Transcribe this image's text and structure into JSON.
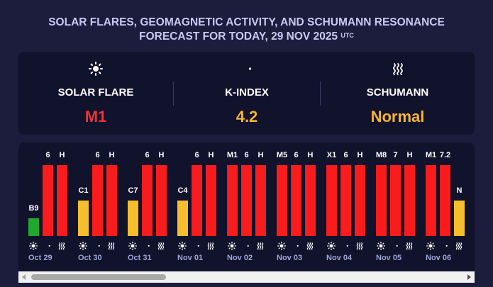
{
  "page": {
    "title_line1": "SOLAR FLARES, GEOMAGNETIC ACTIVITY, AND SCHUMANN RESONANCE",
    "title_line2": "FORECAST FOR TODAY, 29 NOV 2025",
    "title_sup": "UTC"
  },
  "summary": {
    "solar": {
      "icon": "sun-icon",
      "label": "SOLAR FLARE",
      "value": "M1",
      "color": "#f03434"
    },
    "kindex": {
      "icon": "moon-icon",
      "label": "K-INDEX",
      "value": "4.2",
      "color": "#f7b52f"
    },
    "schumann": {
      "icon": "waves-icon",
      "label": "SCHUMANN",
      "value": "Normal",
      "color": "#f7b52f"
    }
  },
  "colors": {
    "red": "#f81c1c",
    "yellow": "#f6be2c",
    "green": "#1ea82c",
    "date": "#9fa6d6"
  },
  "chart_data": {
    "type": "bar",
    "days": [
      {
        "date": "Oct 29",
        "flare": {
          "label": "B9",
          "level": 0.25,
          "color": "green"
        },
        "kindex": {
          "label": "6",
          "level": 1.0,
          "color": "red"
        },
        "schumann": {
          "label": "H",
          "level": 1.0,
          "color": "red"
        }
      },
      {
        "date": "Oct 30",
        "flare": {
          "label": "C1",
          "level": 0.5,
          "color": "yellow"
        },
        "kindex": {
          "label": "6",
          "level": 1.0,
          "color": "red"
        },
        "schumann": {
          "label": "H",
          "level": 1.0,
          "color": "red"
        }
      },
      {
        "date": "Oct 31",
        "flare": {
          "label": "C7",
          "level": 0.5,
          "color": "yellow"
        },
        "kindex": {
          "label": "6",
          "level": 1.0,
          "color": "red"
        },
        "schumann": {
          "label": "H",
          "level": 1.0,
          "color": "red"
        }
      },
      {
        "date": "Nov 01",
        "flare": {
          "label": "C4",
          "level": 0.5,
          "color": "yellow"
        },
        "kindex": {
          "label": "6",
          "level": 1.0,
          "color": "red"
        },
        "schumann": {
          "label": "H",
          "level": 1.0,
          "color": "red"
        }
      },
      {
        "date": "Nov 02",
        "flare": {
          "label": "M1",
          "level": 1.0,
          "color": "red"
        },
        "kindex": {
          "label": "6",
          "level": 1.0,
          "color": "red"
        },
        "schumann": {
          "label": "H",
          "level": 1.0,
          "color": "red"
        }
      },
      {
        "date": "Nov 03",
        "flare": {
          "label": "M5",
          "level": 1.0,
          "color": "red"
        },
        "kindex": {
          "label": "6",
          "level": 1.0,
          "color": "red"
        },
        "schumann": {
          "label": "H",
          "level": 1.0,
          "color": "red"
        }
      },
      {
        "date": "Nov 04",
        "flare": {
          "label": "X1",
          "level": 1.0,
          "color": "red"
        },
        "kindex": {
          "label": "6",
          "level": 1.0,
          "color": "red"
        },
        "schumann": {
          "label": "H",
          "level": 1.0,
          "color": "red"
        }
      },
      {
        "date": "Nov 05",
        "flare": {
          "label": "M8",
          "level": 1.0,
          "color": "red"
        },
        "kindex": {
          "label": "7",
          "level": 1.0,
          "color": "red"
        },
        "schumann": {
          "label": "H",
          "level": 1.0,
          "color": "red"
        }
      },
      {
        "date": "Nov 06",
        "flare": {
          "label": "M1",
          "level": 1.0,
          "color": "red"
        },
        "kindex": {
          "label": "7.2",
          "level": 1.0,
          "color": "red"
        },
        "schumann": {
          "label": "N",
          "level": 0.5,
          "color": "yellow"
        }
      }
    ]
  }
}
